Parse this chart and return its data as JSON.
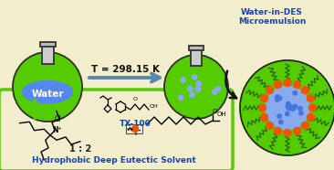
{
  "bg_color": "#f2edcc",
  "green_color": "#55cc00",
  "green_dark": "#33aa00",
  "blue_water": "#5588ee",
  "light_blue": "#88aaee",
  "blue_dots": "#4477dd",
  "orange_color": "#ee5500",
  "dark_green_tail": "#226600",
  "flask_outline": "#333333",
  "arrow_color": "#5588aa",
  "text_color": "#111111",
  "text_T": "T = 298.15 K",
  "text_TX100": "TX-100",
  "text_water": "Water",
  "text_microemulsion_1": "Water-in-DES",
  "text_microemulsion_2": "Microemulsion",
  "text_ratio": "1 : 2",
  "text_hdes": "Hydrophobic Deep Eutectic Solvent",
  "box_green_outline": "#55cc00",
  "title_color": "#1144cc",
  "white": "#ffffff",
  "neck_color": "#cccccc"
}
